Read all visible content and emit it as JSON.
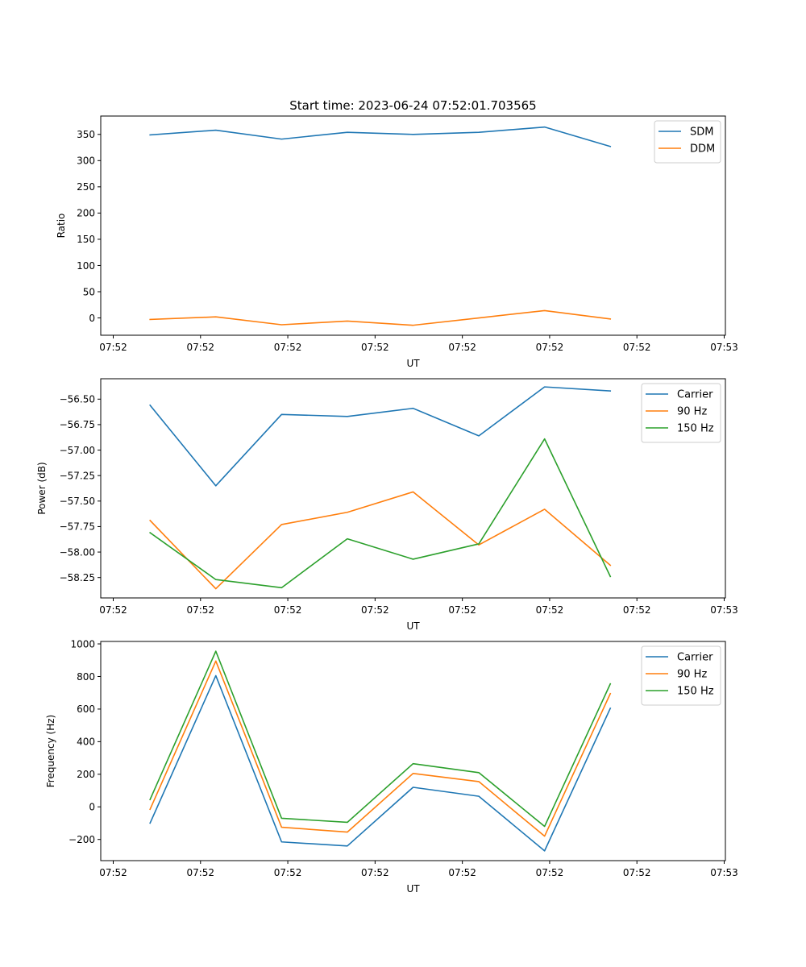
{
  "figure": {
    "title": "Start time: 2023-06-24 07:52:01.703565"
  },
  "chart_data": [
    {
      "type": "line",
      "xlabel": "UT",
      "ylabel": "Ratio",
      "x": [
        "07:52:02.4",
        "07:52:02.8",
        "07:52:03.2",
        "07:52:03.6",
        "07:52:04.0",
        "07:52:04.4",
        "07:52:04.8",
        "07:52:05.2"
      ],
      "xlim": [
        "07:52:02.1",
        "07:52:05.9"
      ],
      "xticks": [
        "07:52",
        "07:52",
        "07:52",
        "07:52",
        "07:52",
        "07:52",
        "07:52",
        "07:53"
      ],
      "ylim": [
        -33,
        385
      ],
      "yticks": [
        "0",
        "50",
        "100",
        "150",
        "200",
        "250",
        "300",
        "350"
      ],
      "legend_position": "top-right",
      "grid": false,
      "series": [
        {
          "name": "SDM",
          "color": "#1f77b4",
          "values": [
            349,
            358,
            341,
            354,
            350,
            354,
            364,
            327
          ]
        },
        {
          "name": "DDM",
          "color": "#ff7f0e",
          "values": [
            -3,
            2,
            -13,
            -6,
            -14,
            0,
            14,
            -2
          ]
        }
      ]
    },
    {
      "type": "line",
      "xlabel": "UT",
      "ylabel": "Power (dB)",
      "x": [
        "07:52:02.4",
        "07:52:02.8",
        "07:52:03.2",
        "07:52:03.6",
        "07:52:04.0",
        "07:52:04.4",
        "07:52:04.8",
        "07:52:05.2"
      ],
      "xlim": [
        "07:52:02.1",
        "07:52:05.9"
      ],
      "xticks": [
        "07:52",
        "07:52",
        "07:52",
        "07:52",
        "07:52",
        "07:52",
        "07:52",
        "07:53"
      ],
      "ylim": [
        -58.45,
        -56.3
      ],
      "yticks": [
        "−58.25",
        "−58.00",
        "−57.75",
        "−57.50",
        "−57.25",
        "−57.00",
        "−56.75",
        "−56.50"
      ],
      "legend_position": "top-right",
      "grid": false,
      "series": [
        {
          "name": "Carrier",
          "color": "#1f77b4",
          "values": [
            -56.56,
            -57.35,
            -56.65,
            -56.67,
            -56.59,
            -56.86,
            -56.38,
            -56.42
          ]
        },
        {
          "name": "90 Hz",
          "color": "#ff7f0e",
          "values": [
            -57.69,
            -58.36,
            -57.73,
            -57.61,
            -57.41,
            -57.93,
            -57.58,
            -58.13
          ]
        },
        {
          "name": "150 Hz",
          "color": "#2ca02c",
          "values": [
            -57.81,
            -58.27,
            -58.35,
            -57.87,
            -58.07,
            -57.92,
            -56.89,
            -58.24
          ]
        }
      ]
    },
    {
      "type": "line",
      "xlabel": "UT",
      "ylabel": "Frequency (Hz)",
      "x": [
        "07:52:02.4",
        "07:52:02.8",
        "07:52:03.2",
        "07:52:03.6",
        "07:52:04.0",
        "07:52:04.4",
        "07:52:04.8",
        "07:52:05.2"
      ],
      "xlim": [
        "07:52:02.1",
        "07:52:05.9"
      ],
      "xticks": [
        "07:52",
        "07:52",
        "07:52",
        "07:52",
        "07:52",
        "07:52",
        "07:52",
        "07:53"
      ],
      "ylim": [
        -330,
        1015
      ],
      "yticks": [
        "−200",
        "0",
        "200",
        "400",
        "600",
        "800",
        "1000"
      ],
      "legend_position": "top-right",
      "grid": false,
      "series": [
        {
          "name": "Carrier",
          "color": "#1f77b4",
          "values": [
            -100,
            805,
            -215,
            -240,
            120,
            65,
            -270,
            605
          ]
        },
        {
          "name": "90 Hz",
          "color": "#ff7f0e",
          "values": [
            -15,
            895,
            -125,
            -155,
            205,
            155,
            -180,
            695
          ]
        },
        {
          "name": "150 Hz",
          "color": "#2ca02c",
          "values": [
            45,
            955,
            -70,
            -95,
            265,
            210,
            -120,
            755
          ]
        }
      ]
    }
  ]
}
